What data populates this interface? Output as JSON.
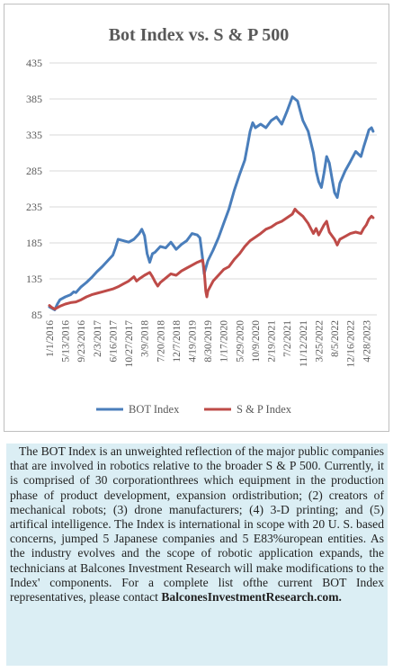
{
  "chart_data": {
    "type": "line",
    "title": "Bot Index vs. S & P 500",
    "xlabel": "",
    "ylabel": "",
    "ylim": [
      85,
      435
    ],
    "yticks": [
      85,
      135,
      185,
      235,
      285,
      335,
      385,
      435
    ],
    "xticks": [
      "1/1/2016",
      "5/13/2016",
      "9/23/2016",
      "2/3/2017",
      "6/16/2017",
      "10/27/2017",
      "3/9/2018",
      "7/20/2018",
      "12/7/2018",
      "4/19/2019",
      "8/30/2019",
      "1/17/2020",
      "5/29/2020",
      "10/9/2020",
      "2/19/2021",
      "7/2/2021",
      "11/12/2021",
      "3/25/2022",
      "8/5/2022",
      "12/16/2022",
      "4/28/2023"
    ],
    "grid": true,
    "legend": "bottom",
    "series": [
      {
        "name": "BOT Index",
        "color": "#4a7ebb",
        "values": [
          [
            0,
            96
          ],
          [
            1,
            92
          ],
          [
            1.5,
            100
          ],
          [
            2,
            106
          ],
          [
            3,
            110
          ],
          [
            4,
            113
          ],
          [
            4.6,
            117
          ],
          [
            5,
            116
          ],
          [
            5.5,
            120
          ],
          [
            6,
            124
          ],
          [
            7,
            130
          ],
          [
            8,
            137
          ],
          [
            9,
            145
          ],
          [
            10,
            152
          ],
          [
            11,
            160
          ],
          [
            12,
            168
          ],
          [
            12.5,
            178
          ],
          [
            13,
            190
          ],
          [
            14,
            188
          ],
          [
            15,
            186
          ],
          [
            16,
            190
          ],
          [
            17,
            198
          ],
          [
            17.5,
            204
          ],
          [
            18,
            195
          ],
          [
            18.5,
            170
          ],
          [
            19,
            158
          ],
          [
            19.5,
            170
          ],
          [
            20,
            172
          ],
          [
            21,
            180
          ],
          [
            22,
            178
          ],
          [
            23,
            186
          ],
          [
            24,
            176
          ],
          [
            25,
            183
          ],
          [
            26,
            188
          ],
          [
            27,
            198
          ],
          [
            28,
            196
          ],
          [
            28.5,
            192
          ],
          [
            28.8,
            175
          ],
          [
            29,
            163
          ],
          [
            29.3,
            142
          ],
          [
            29.6,
            150
          ],
          [
            30,
            160
          ],
          [
            31,
            175
          ],
          [
            32,
            192
          ],
          [
            33,
            212
          ],
          [
            34,
            232
          ],
          [
            35,
            258
          ],
          [
            36,
            280
          ],
          [
            37,
            300
          ],
          [
            37.5,
            320
          ],
          [
            38,
            340
          ],
          [
            38.5,
            352
          ],
          [
            39,
            345
          ],
          [
            40,
            350
          ],
          [
            41,
            345
          ],
          [
            42,
            355
          ],
          [
            43,
            360
          ],
          [
            44,
            350
          ],
          [
            45,
            368
          ],
          [
            46,
            388
          ],
          [
            47,
            382
          ],
          [
            47.5,
            368
          ],
          [
            48,
            355
          ],
          [
            49,
            340
          ],
          [
            50,
            310
          ],
          [
            50.5,
            285
          ],
          [
            51,
            270
          ],
          [
            51.5,
            262
          ],
          [
            52,
            282
          ],
          [
            52.5,
            305
          ],
          [
            53,
            296
          ],
          [
            53.5,
            275
          ],
          [
            54,
            255
          ],
          [
            54.5,
            248
          ],
          [
            55,
            268
          ],
          [
            56,
            285
          ],
          [
            57,
            298
          ],
          [
            58,
            312
          ],
          [
            59,
            305
          ],
          [
            59.5,
            318
          ],
          [
            60,
            330
          ],
          [
            60.5,
            342
          ],
          [
            61,
            345
          ],
          [
            61.3,
            340
          ]
        ]
      },
      {
        "name": "S & P Index",
        "color": "#be4b48",
        "values": [
          [
            0,
            98
          ],
          [
            0.5,
            95
          ],
          [
            1,
            93
          ],
          [
            2,
            97
          ],
          [
            3,
            100
          ],
          [
            4,
            102
          ],
          [
            5,
            103
          ],
          [
            6,
            106
          ],
          [
            7,
            110
          ],
          [
            8,
            113
          ],
          [
            9,
            115
          ],
          [
            10,
            117
          ],
          [
            11,
            119
          ],
          [
            12,
            121
          ],
          [
            13,
            124
          ],
          [
            14,
            128
          ],
          [
            15,
            132
          ],
          [
            16,
            138
          ],
          [
            16.5,
            132
          ],
          [
            17,
            135
          ],
          [
            18,
            140
          ],
          [
            19,
            144
          ],
          [
            19.5,
            138
          ],
          [
            20,
            131
          ],
          [
            20.5,
            125
          ],
          [
            21,
            130
          ],
          [
            22,
            136
          ],
          [
            23,
            142
          ],
          [
            24,
            140
          ],
          [
            25,
            146
          ],
          [
            26,
            150
          ],
          [
            27,
            154
          ],
          [
            28,
            158
          ],
          [
            29,
            161
          ],
          [
            29.3,
            148
          ],
          [
            29.6,
            118
          ],
          [
            29.8,
            110
          ],
          [
            30,
            118
          ],
          [
            31,
            132
          ],
          [
            32,
            140
          ],
          [
            33,
            148
          ],
          [
            34,
            152
          ],
          [
            35,
            162
          ],
          [
            36,
            170
          ],
          [
            37,
            180
          ],
          [
            38,
            188
          ],
          [
            39,
            193
          ],
          [
            40,
            198
          ],
          [
            41,
            204
          ],
          [
            42,
            207
          ],
          [
            43,
            212
          ],
          [
            44,
            215
          ],
          [
            45,
            220
          ],
          [
            46,
            225
          ],
          [
            46.5,
            232
          ],
          [
            47,
            228
          ],
          [
            48,
            222
          ],
          [
            49,
            212
          ],
          [
            50,
            198
          ],
          [
            50.5,
            205
          ],
          [
            51,
            196
          ],
          [
            52,
            210
          ],
          [
            52.5,
            215
          ],
          [
            53,
            200
          ],
          [
            54,
            190
          ],
          [
            54.5,
            182
          ],
          [
            55,
            190
          ],
          [
            56,
            194
          ],
          [
            57,
            198
          ],
          [
            58,
            200
          ],
          [
            59,
            198
          ],
          [
            59.5,
            205
          ],
          [
            60,
            210
          ],
          [
            60.5,
            218
          ],
          [
            61,
            222
          ],
          [
            61.3,
            220
          ]
        ]
      }
    ]
  },
  "description": {
    "body": "The BOT Index is an unweighted reflection of the major public companies that are involved in robotics relative to the broader S & P 500. Currently, it is comprised of 30 corporationthrees which equipment in the production phase of product development, expansion ordistribution; (2) creators of mechanical robots; (3) drone manufacturers; (4) 3-D printing; and (5) artifical intelligence. The Index is international in scope with 20 U. S. based concerns, jumped 5 Japanese companies and 5 E83%uropean entities. As the industry evolves and the scope of robotic application expands, the technicians at Balcones Investment Research will make modifications to the Index' components. For a complete list ofthe current BOT Index representatives, please contact",
    "link": "BalconesInvestmentResearch.com."
  }
}
